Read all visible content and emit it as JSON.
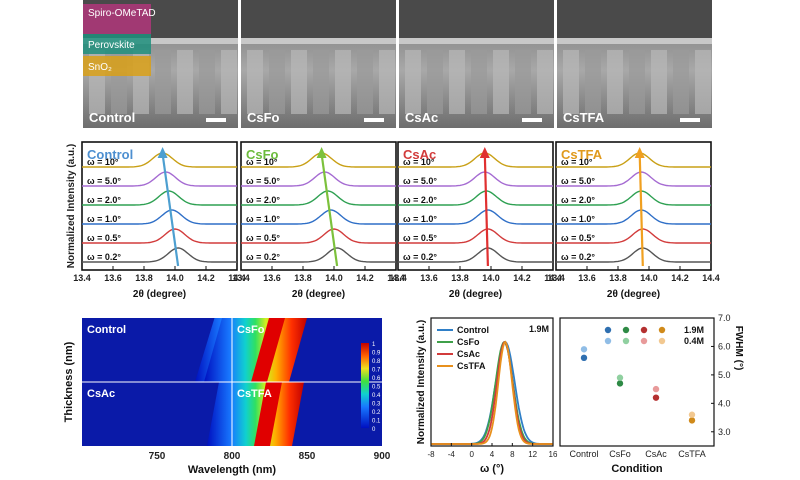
{
  "sem": {
    "panels": [
      {
        "label": "Control"
      },
      {
        "label": "CsFo"
      },
      {
        "label": "CsAc"
      },
      {
        "label": "CsTFA"
      }
    ],
    "layers": [
      "Spiro-OMeTAD",
      "Perovskite",
      "SnO₂"
    ],
    "layer_colors": [
      "#b0367a",
      "#1f8f7d",
      "#d9a018"
    ]
  },
  "chart_data": [
    {
      "type": "line",
      "name": "xrd",
      "ylabel": "Normalized Intensity (a.u.)",
      "xlabel": "2θ (degree)",
      "xlim": [
        13.4,
        14.4
      ],
      "xticks": [
        "13.4",
        "13.6",
        "13.8",
        "14.0",
        "14.2",
        "14.4"
      ],
      "omega_labels": [
        "ω = 0.2°",
        "ω = 0.5°",
        "ω = 1.0°",
        "ω = 2.0°",
        "ω = 5.0°",
        "ω = 10°"
      ],
      "trace_colors": [
        "#555555",
        "#d23b3b",
        "#2f6fc7",
        "#2ea052",
        "#a56bd2",
        "#c9a016"
      ],
      "panels": [
        {
          "label": "Control",
          "label_color": "#4d8fd0",
          "arrow_color": "#4d9fd0",
          "peaks": [
            14.02,
            14.0,
            13.98,
            13.96,
            13.94,
            13.92
          ]
        },
        {
          "label": "CsFo",
          "label_color": "#6cbb3c",
          "arrow_color": "#7cc13c",
          "peaks": [
            14.02,
            14.0,
            13.98,
            13.96,
            13.94,
            13.92
          ]
        },
        {
          "label": "CsAc",
          "label_color": "#d23b3b",
          "arrow_color": "#e03030",
          "peaks": [
            13.98,
            13.98,
            13.98,
            13.97,
            13.96,
            13.96
          ]
        },
        {
          "label": "CsTFA",
          "label_color": "#e09a1c",
          "arrow_color": "#f0a020",
          "peaks": [
            13.96,
            13.96,
            13.95,
            13.95,
            13.95,
            13.94
          ]
        }
      ]
    },
    {
      "type": "heatmap",
      "name": "thickness_map",
      "ylabel": "Thickness (nm)",
      "xlabel": "Wavelength (nm)",
      "xlim": [
        700,
        900
      ],
      "xticks": [
        "750",
        "800",
        "850",
        "900"
      ],
      "panels": [
        {
          "label": "Control",
          "band_top": 825,
          "band_bottom": 812
        },
        {
          "label": "CsFo",
          "band_top": 830,
          "band_bottom": 818
        },
        {
          "label": "CsAc",
          "band_top": 830,
          "band_bottom": 820
        },
        {
          "label": "CsTFA",
          "band_top": 828,
          "band_bottom": 820
        }
      ],
      "colorbar": {
        "min": 0,
        "max": 1,
        "ticks": [
          "1",
          "0.9",
          "0.8",
          "0.7",
          "0.6",
          "0.5",
          "0.4",
          "0.3",
          "0.2",
          "0.1",
          "0"
        ]
      }
    },
    {
      "type": "line",
      "name": "rocking_curves",
      "ylabel": "Normalized Intensity (a.u.)",
      "xlabel": "ω (°)",
      "xlim": [
        -8,
        16
      ],
      "xticks": [
        "-8",
        "-4",
        "0",
        "4",
        "8",
        "12",
        "16"
      ],
      "annotation": "1.9M",
      "series": [
        {
          "name": "Control",
          "color": "#2f7fc7",
          "center": 6.6,
          "sigma": 2.2
        },
        {
          "name": "CsFo",
          "color": "#3fa04a",
          "center": 6.4,
          "sigma": 2.0
        },
        {
          "name": "CsAc",
          "color": "#d23b3b",
          "center": 6.5,
          "sigma": 1.8
        },
        {
          "name": "CsTFA",
          "color": "#e8901c",
          "center": 6.6,
          "sigma": 1.6
        }
      ]
    },
    {
      "type": "scatter",
      "name": "fwhm",
      "ylabel": "FWHM (°)",
      "xlabel": "Condition",
      "categories": [
        "Control",
        "CsFo",
        "CsAc",
        "CsTFA"
      ],
      "ylim": [
        2.5,
        7.0
      ],
      "yticks": [
        "3.0",
        "4.0",
        "5.0",
        "6.0",
        "7.0"
      ],
      "legend": {
        "entries": [
          "1.9M",
          "0.4M"
        ],
        "colors_dark": [
          "#2f6fb0",
          "#2e8a45",
          "#b43030",
          "#d08a1a"
        ],
        "colors_light": [
          "#90bde6",
          "#90d0a0",
          "#e89a9a",
          "#f2c890"
        ]
      },
      "series": [
        {
          "name": "1.9M",
          "values": [
            5.6,
            4.7,
            4.2,
            3.4
          ]
        },
        {
          "name": "0.4M",
          "values": [
            5.9,
            4.9,
            4.5,
            3.6
          ]
        }
      ]
    }
  ]
}
